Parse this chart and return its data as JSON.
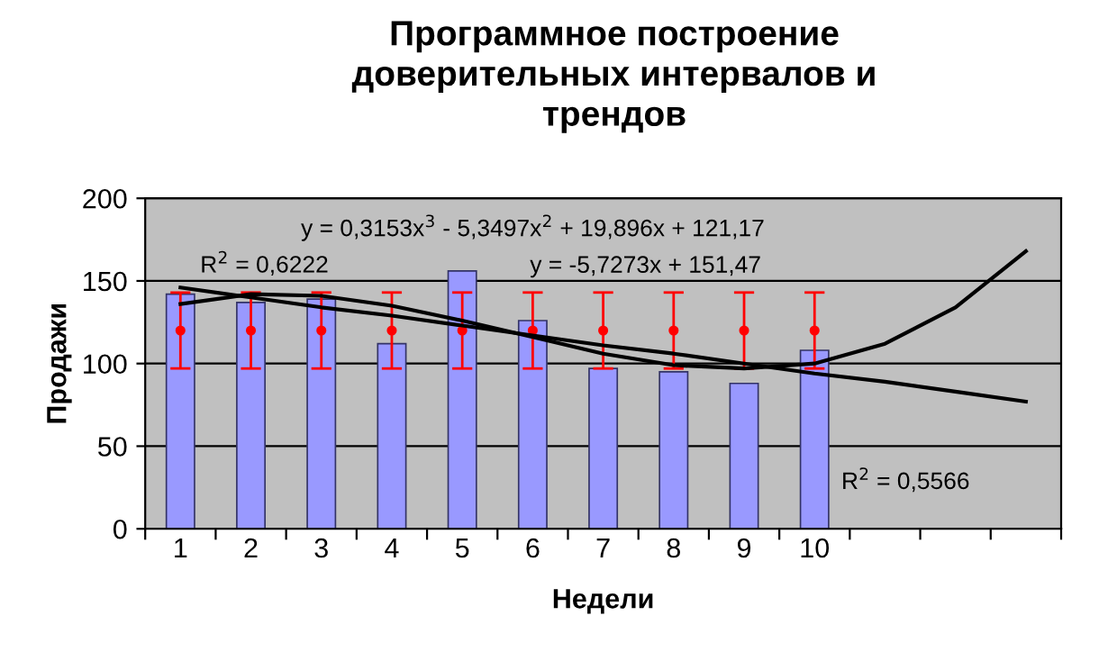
{
  "chart_data": {
    "type": "bar",
    "title": "Программное построение\nдоверительных интервалов и\nтрендов",
    "xlabel": "Недели",
    "ylabel": "Продажи",
    "categories": [
      "1",
      "2",
      "3",
      "4",
      "5",
      "6",
      "7",
      "8",
      "9",
      "10",
      null,
      null,
      null
    ],
    "series": [
      {
        "color": "#9999ff",
        "values": [
          142,
          137,
          139,
          112,
          156,
          126,
          97,
          95,
          88,
          108,
          null,
          null,
          null
        ]
      },
      {
        "type": "scatter",
        "marker": "circle",
        "color": "#ff0000",
        "values": [
          120,
          120,
          120,
          120,
          120,
          120,
          120,
          120,
          120,
          120,
          null,
          null,
          null
        ],
        "errors": [
          23,
          23,
          23,
          23,
          23,
          23,
          23,
          23,
          23,
          23,
          null,
          null,
          null
        ]
      },
      {
        "type": "line",
        "color": "#000000",
        "values": [
          136,
          142,
          141,
          135,
          126,
          116,
          106,
          99,
          97,
          100,
          112,
          134,
          168
        ]
      },
      {
        "type": "line",
        "color": "#000000",
        "values": [
          146,
          140,
          134,
          129,
          123,
          117,
          111,
          106,
          100,
          94,
          89,
          83,
          77
        ]
      }
    ],
    "ylim": [
      0,
      200
    ],
    "yticks": [
      0,
      50,
      100,
      150,
      200
    ],
    "grid": "y",
    "legend": false,
    "annotations": [
      "y = 0,3153x$^{3}$ - 5,3497x$^{2}$ + 19,896x + 121,17",
      "R$^{2}$ = 0,6222",
      "y = -5,7273x + 151,47",
      "R$^{2}$ = 0,5566"
    ]
  }
}
